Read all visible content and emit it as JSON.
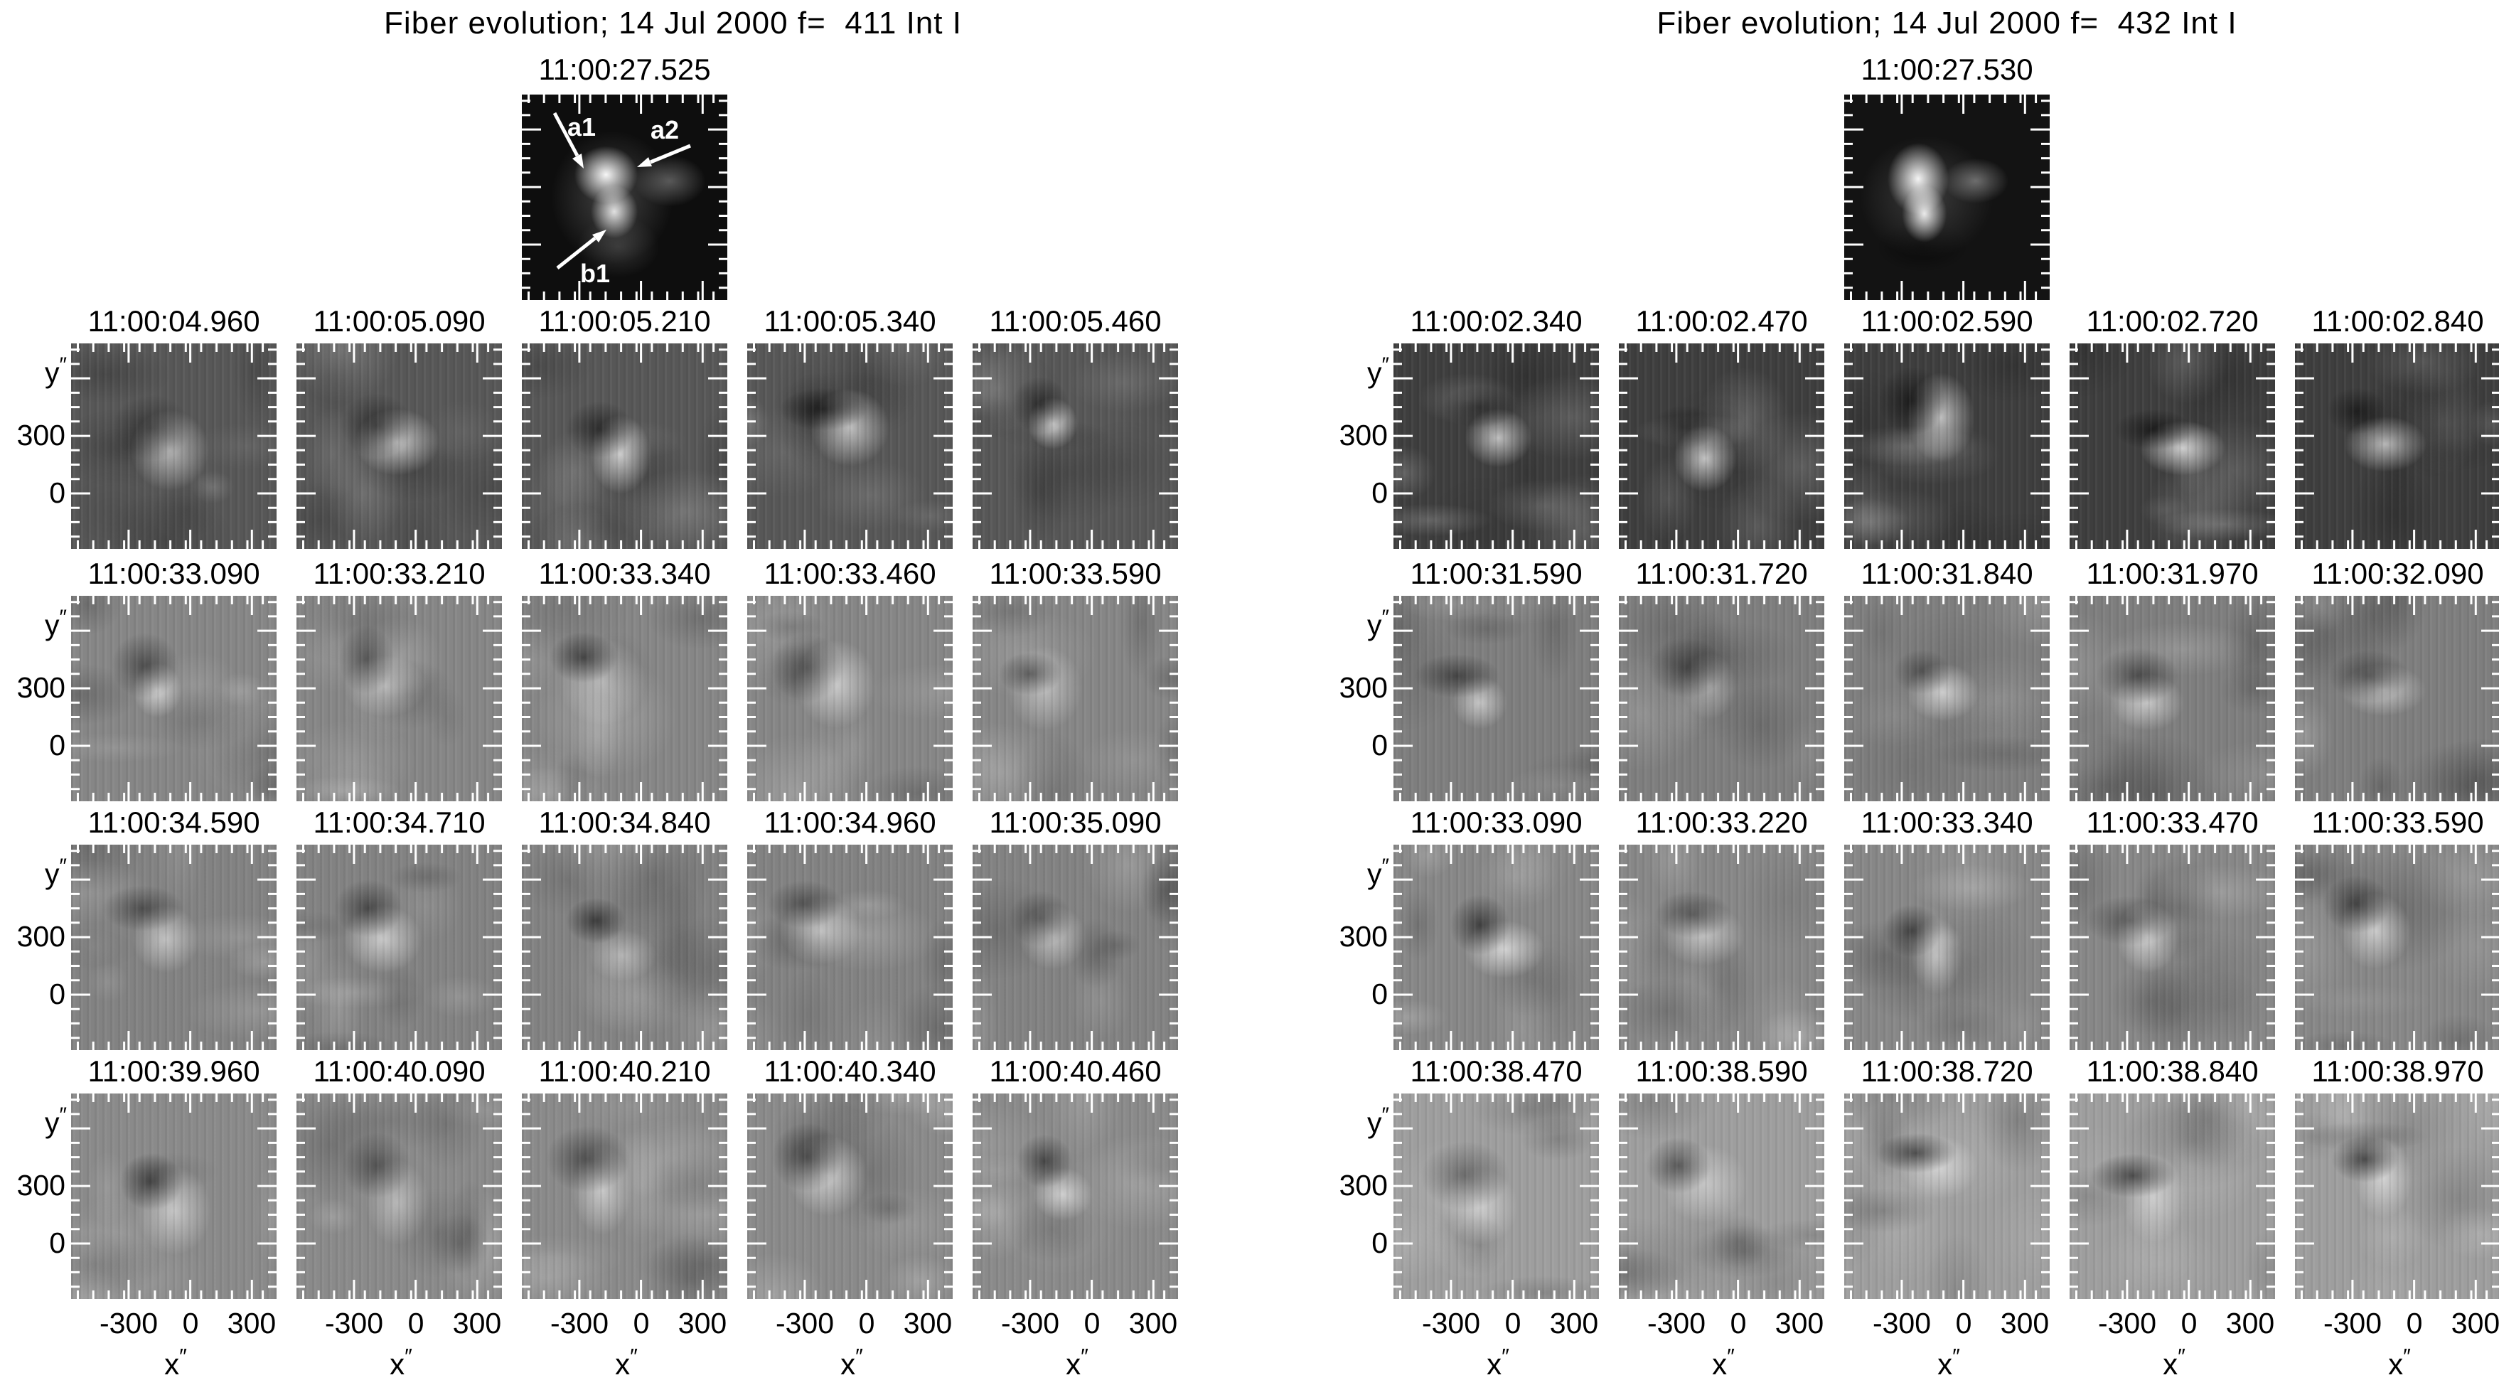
{
  "figure": {
    "axis": {
      "x_label": "x",
      "y_label": "y",
      "prime": "″",
      "x_ticks": [
        "-300",
        "0",
        "300"
      ],
      "y_ticks": [
        "300",
        "0"
      ]
    },
    "colors": {
      "background": "#ffffff",
      "text": "#000000",
      "tick": "#ffffff",
      "ref_background_left": "#0e0e0e",
      "ref_background_right": "#131313"
    },
    "panels": [
      {
        "id": "left",
        "title": "Fiber evolution; 14 Jul 2000 f=  411 Int I",
        "ref_time": "11:00:27.525",
        "ref_annotations": [
          "a1",
          "a2",
          "b1"
        ],
        "rows": [
          {
            "tone": "#575757",
            "times": [
              "11:00:04.960",
              "11:00:05.090",
              "11:00:05.210",
              "11:00:05.340",
              "11:00:05.460"
            ]
          },
          {
            "tone": "#868686",
            "times": [
              "11:00:33.090",
              "11:00:33.210",
              "11:00:33.340",
              "11:00:33.460",
              "11:00:33.590"
            ]
          },
          {
            "tone": "#828282",
            "times": [
              "11:00:34.590",
              "11:00:34.710",
              "11:00:34.840",
              "11:00:34.960",
              "11:00:35.090"
            ]
          },
          {
            "tone": "#8a8a8a",
            "times": [
              "11:00:39.960",
              "11:00:40.090",
              "11:00:40.210",
              "11:00:40.340",
              "11:00:40.460"
            ]
          }
        ]
      },
      {
        "id": "right",
        "title": "Fiber evolution; 14 Jul 2000 f=  432 Int I",
        "ref_time": "11:00:27.530",
        "ref_annotations": [],
        "rows": [
          {
            "tone": "#3e3e3e",
            "times": [
              "11:00:02.340",
              "11:00:02.470",
              "11:00:02.590",
              "11:00:02.720",
              "11:00:02.840"
            ]
          },
          {
            "tone": "#7e7e7e",
            "times": [
              "11:00:31.590",
              "11:00:31.720",
              "11:00:31.840",
              "11:00:31.970",
              "11:00:32.090"
            ]
          },
          {
            "tone": "#878787",
            "times": [
              "11:00:33.090",
              "11:00:33.220",
              "11:00:33.340",
              "11:00:33.470",
              "11:00:33.590"
            ]
          },
          {
            "tone": "#9e9e9e",
            "times": [
              "11:00:38.470",
              "11:00:38.590",
              "11:00:38.720",
              "11:00:38.840",
              "11:00:38.970"
            ]
          }
        ]
      }
    ]
  }
}
